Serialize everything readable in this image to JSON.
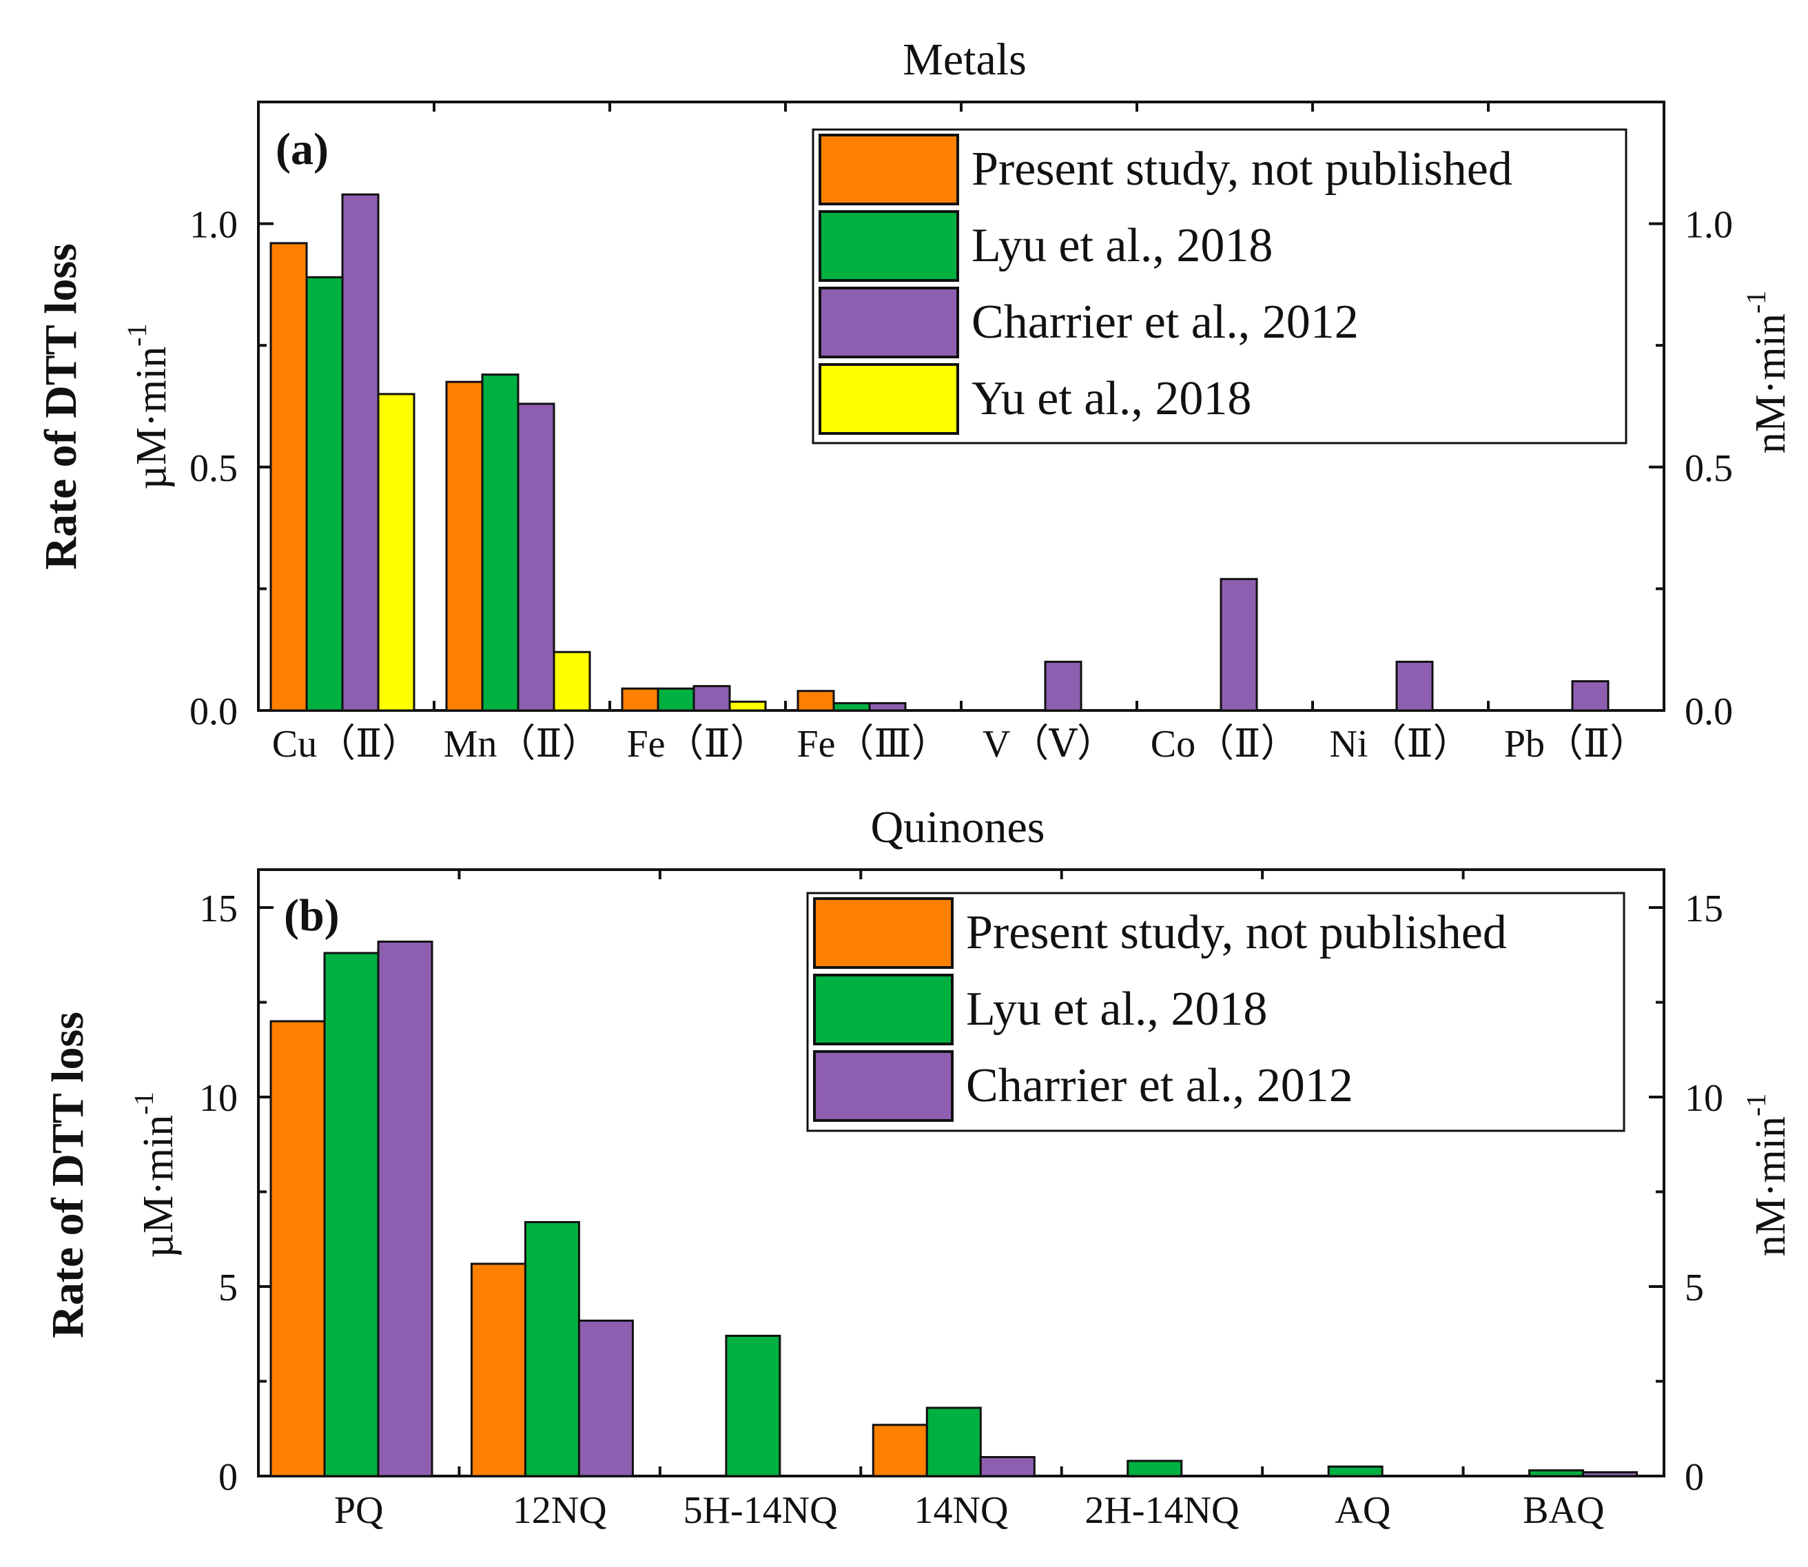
{
  "colors": {
    "present": "#FF8000",
    "lyu": "#00B040",
    "charrier": "#8E5FB0",
    "yu": "#FFFF00"
  },
  "chart_data": [
    {
      "type": "bar",
      "panel_label": "(a)",
      "title": "Metals",
      "ylabel": "Rate of DTT loss",
      "ylabel_left_unit": "µM·min",
      "ylabel_right_unit": "nM·min",
      "unit_exponent": "-1",
      "ylim": [
        0,
        1.25
      ],
      "yticks": [
        0.0,
        0.5,
        1.0
      ],
      "ytick_labels": [
        "0.0",
        "0.5",
        "1.0"
      ],
      "legend_position": "top-right",
      "categories": [
        "Cu（Ⅱ）",
        "Mn（Ⅱ）",
        "Fe（Ⅱ）",
        "Fe（Ⅲ）",
        "V（Ⅴ）",
        "Co（Ⅱ）",
        "Ni（Ⅱ）",
        "Pb（Ⅱ）"
      ],
      "series": [
        {
          "name": "Present study, not published",
          "color_key": "present",
          "values": [
            0.96,
            0.675,
            0.045,
            0.04,
            null,
            null,
            null,
            null
          ]
        },
        {
          "name": "Lyu et al., 2018",
          "color_key": "lyu",
          "values": [
            0.89,
            0.69,
            0.045,
            0.015,
            null,
            null,
            null,
            null
          ]
        },
        {
          "name": "Charrier et al., 2012",
          "color_key": "charrier",
          "values": [
            1.06,
            0.63,
            0.05,
            0.015,
            0.1,
            0.27,
            0.1,
            0.06
          ]
        },
        {
          "name": "Yu et al., 2018",
          "color_key": "yu",
          "values": [
            0.65,
            0.12,
            0.018,
            null,
            null,
            null,
            null,
            null
          ]
        }
      ]
    },
    {
      "type": "bar",
      "panel_label": "(b)",
      "title": "Quinones",
      "ylabel": "Rate of DTT loss",
      "ylabel_left_unit": "µM·min",
      "ylabel_right_unit": "nM·min",
      "unit_exponent": "-1",
      "ylim": [
        0,
        16
      ],
      "yticks": [
        0,
        5,
        10,
        15
      ],
      "ytick_labels": [
        "0",
        "5",
        "10",
        "15"
      ],
      "legend_position": "top-right",
      "categories": [
        "PQ",
        "12NQ",
        "5H-14NQ",
        "14NQ",
        "2H-14NQ",
        "AQ",
        "BAQ"
      ],
      "series": [
        {
          "name": "Present study, not published",
          "color_key": "present",
          "values": [
            12.0,
            5.6,
            null,
            1.35,
            null,
            null,
            null
          ]
        },
        {
          "name": "Lyu et al., 2018",
          "color_key": "lyu",
          "values": [
            13.8,
            6.7,
            3.7,
            1.8,
            0.4,
            0.25,
            0.15
          ]
        },
        {
          "name": "Charrier et al., 2012",
          "color_key": "charrier",
          "values": [
            14.1,
            4.1,
            null,
            0.5,
            null,
            null,
            0.1
          ]
        }
      ]
    }
  ]
}
